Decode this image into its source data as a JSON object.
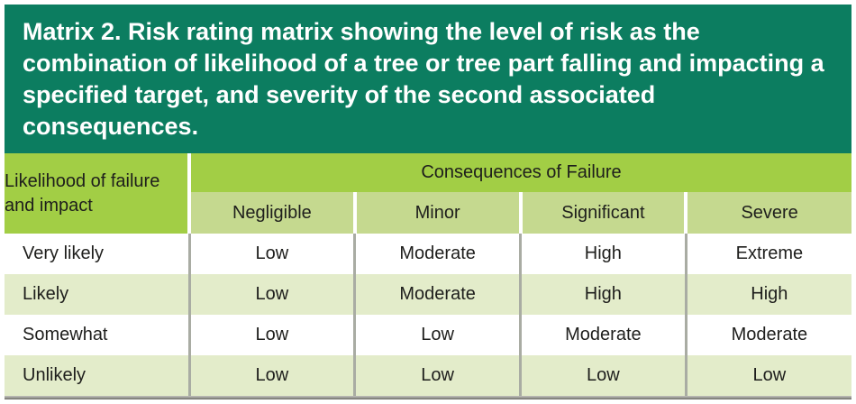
{
  "colors": {
    "caption_band": "#0c7d60",
    "header_green": "#a2ce45",
    "subheader_green": "#c5d98f",
    "row_alt_green": "#e3ecca",
    "row_white": "#ffffff",
    "divider_gray": "#a9aca3",
    "caption_text": "#ffffff",
    "table_text": "#1e1e1c"
  },
  "chart_data": {
    "type": "table",
    "title": "Matrix 2. Risk rating matrix showing the level of risk as the combination of likelihood of a tree or tree part falling and impacting a specified target, and severity of the second associated consequences.",
    "row_header": "Likelihood of failure and impact",
    "column_group": "Consequences of Failure",
    "columns": [
      "Negligible",
      "Minor",
      "Significant",
      "Severe"
    ],
    "rows": [
      {
        "label": "Very likely",
        "values": [
          "Low",
          "Moderate",
          "High",
          "Extreme"
        ]
      },
      {
        "label": "Likely",
        "values": [
          "Low",
          "Moderate",
          "High",
          "High"
        ]
      },
      {
        "label": "Somewhat",
        "values": [
          "Low",
          "Low",
          "Moderate",
          "Moderate"
        ]
      },
      {
        "label": "Unlikely",
        "values": [
          "Low",
          "Low",
          "Low",
          "Low"
        ]
      }
    ]
  }
}
